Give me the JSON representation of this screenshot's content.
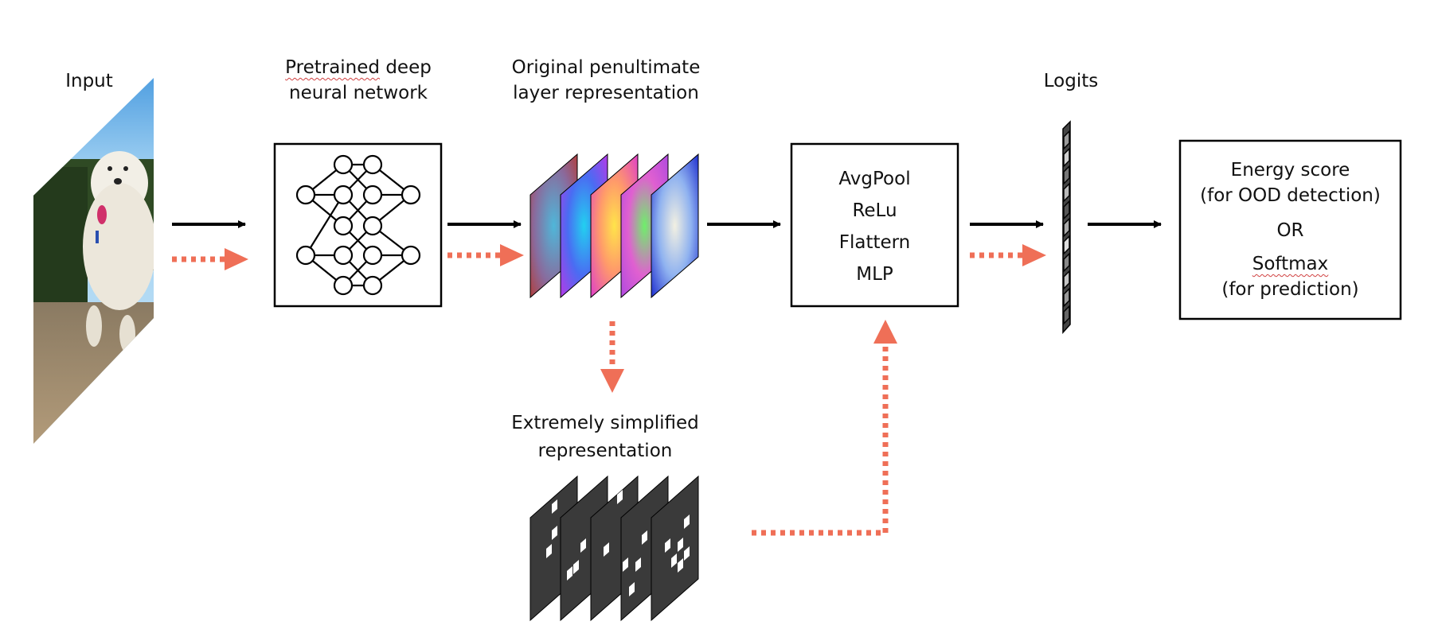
{
  "labels": {
    "input": "Input",
    "pretrained_line1": "Pretrained",
    "pretrained_line1_rest": " deep",
    "pretrained_line2": "neural network",
    "penultimate_line1": "Original penultimate",
    "penultimate_line2": "layer representation",
    "logits": "Logits",
    "simplified_line1": "Extremely simplified",
    "simplified_line2": "representation"
  },
  "head_box": {
    "line1": "AvgPool",
    "line2": "ReLu",
    "line3": "Flattern",
    "line4": "MLP"
  },
  "output_box": {
    "line1": "Energy score",
    "line2": "(for OOD detection)",
    "line3": "OR",
    "line4": "Softmax",
    "line5": "(for prediction)"
  },
  "colors": {
    "solid_arrow": "#000000",
    "dotted_arrow": "#ef6f57",
    "sparse_map": "#3a3a3a",
    "spellcheck_underline": "#d04040"
  },
  "icons": {
    "input_image": "dog-photo",
    "network": "neural-network-icon",
    "feature_maps": "colored-feature-maps",
    "sparse_maps": "sparse-feature-maps",
    "logits": "logit-vector-icon"
  }
}
